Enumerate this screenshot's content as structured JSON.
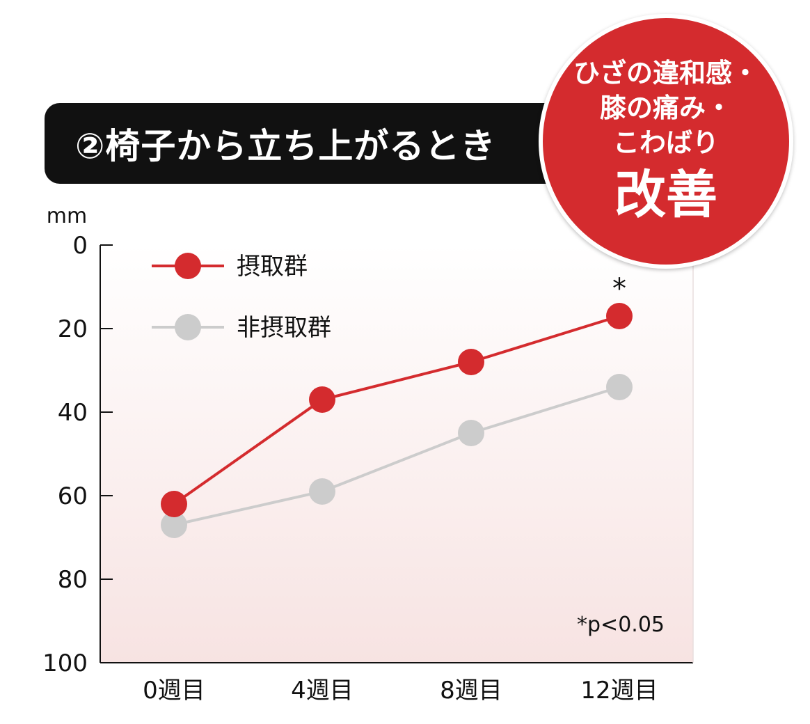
{
  "title": "②椅子から立ち上がるとき",
  "badge": {
    "lines": [
      "ひざの違和感・",
      "膝の痛み・",
      "こわばり"
    ],
    "main": "改善",
    "color": "#d42b2e"
  },
  "chart_data": {
    "type": "line",
    "categories": [
      "0週目",
      "4週目",
      "8週目",
      "12週目"
    ],
    "series": [
      {
        "name": "摂取群",
        "values": [
          62,
          37,
          28,
          17
        ],
        "color": "#d42b2e"
      },
      {
        "name": "非摂取群",
        "values": [
          67,
          59,
          45,
          34
        ],
        "color": "#cccccc"
      }
    ],
    "ylabel": "mm",
    "ylim": [
      0,
      100
    ],
    "y_inverted": true,
    "yticks": [
      0,
      20,
      40,
      60,
      80,
      100
    ],
    "annotations": [
      {
        "text": "*",
        "category": "12週目"
      }
    ],
    "footnote": "*p<0.05",
    "legend_position": "top-left",
    "grid": false
  }
}
